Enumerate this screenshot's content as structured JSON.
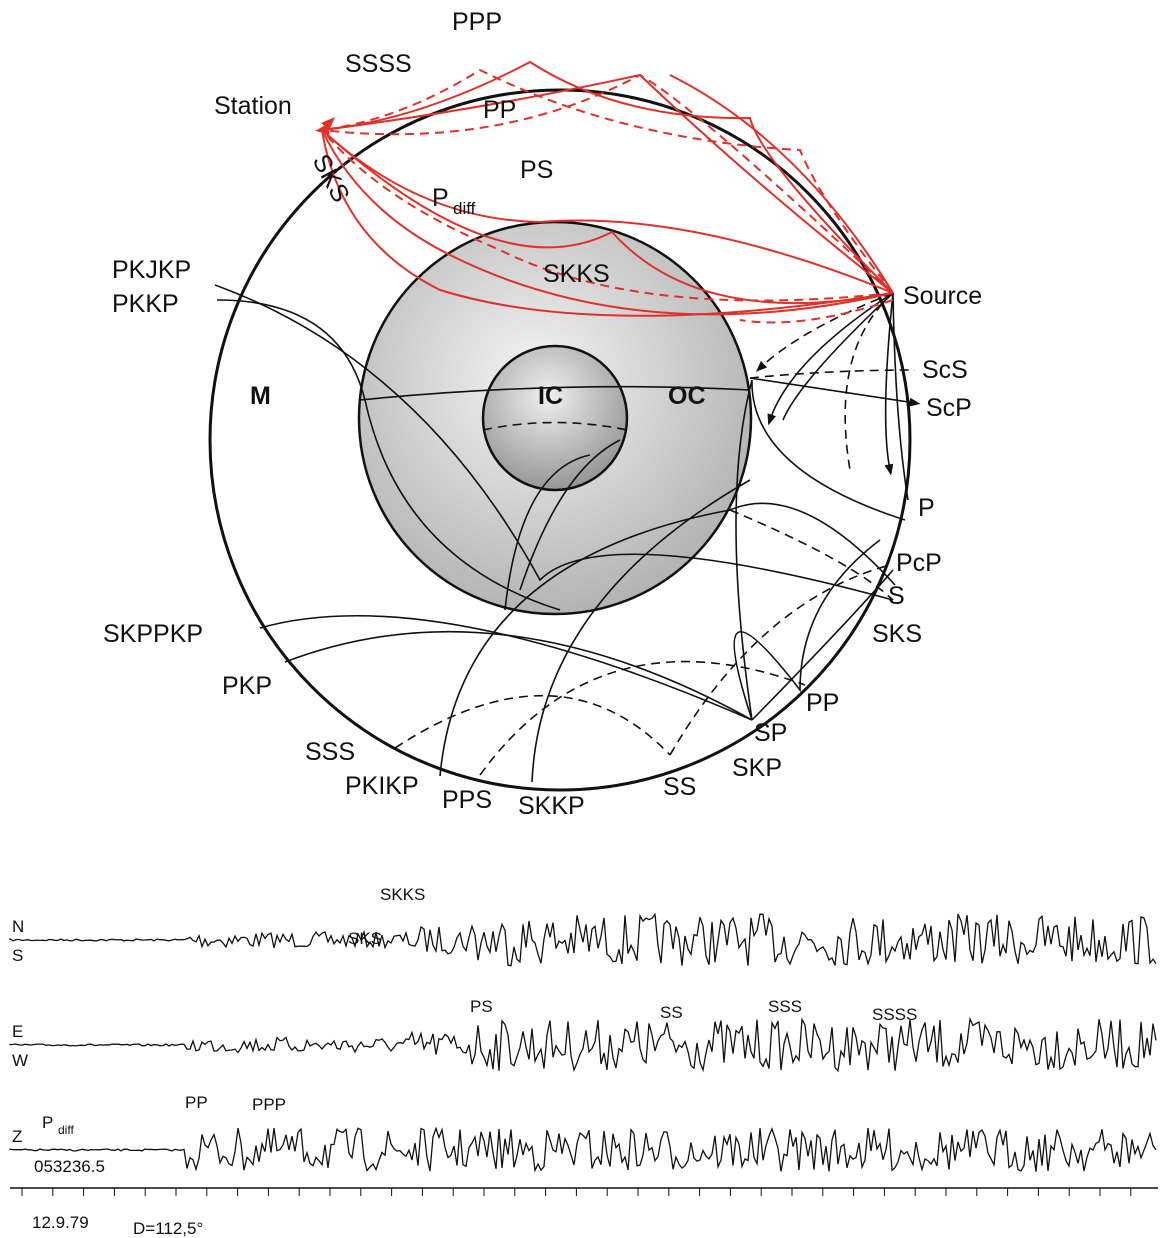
{
  "diagram": {
    "labels": [
      "PPP",
      "SSSS",
      "Station",
      "PP",
      "PS",
      "SKS",
      "P",
      "diff",
      "SKKS",
      "Source",
      "PKJKP",
      "PKKP",
      "M",
      "IC",
      "OC",
      "ScS",
      "ScP",
      "P",
      "PcP",
      "S",
      "SKS",
      "SKPPKP",
      "PKP",
      "SSS",
      "PKIKP",
      "PPS",
      "SKKP",
      "SS",
      "SKP",
      "SP",
      "PP"
    ]
  },
  "seismogram": {
    "traces": [
      {
        "top": "N",
        "bottom": "S"
      },
      {
        "top": "E",
        "bottom": "W"
      },
      {
        "top": "Z"
      }
    ],
    "phases": [
      "SKKS",
      "SKS",
      "PS",
      "SS",
      "SSS",
      "SSSS",
      "PP",
      "PPP",
      "P",
      "diff"
    ],
    "time": "053236.5",
    "date": "12.9.79",
    "distance": "D=112,5°"
  }
}
